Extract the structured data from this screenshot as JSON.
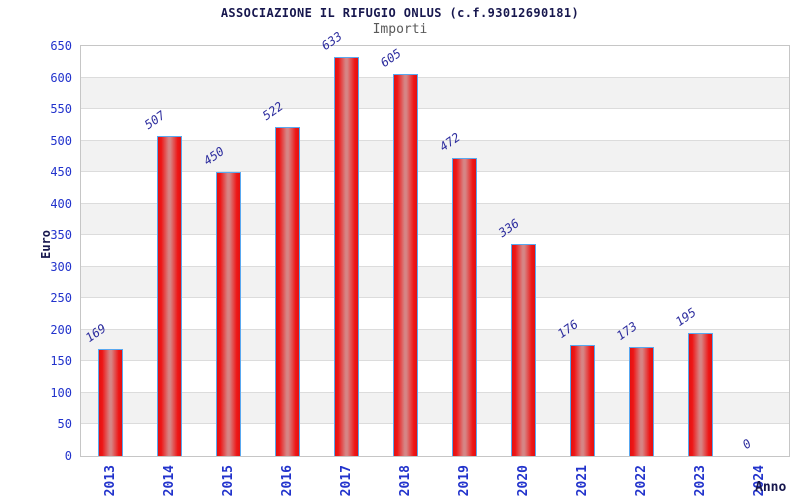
{
  "header": {
    "title": "ASSOCIAZIONE IL RIFUGIO ONLUS (c.f.93012690181)",
    "subtitle": "Importi"
  },
  "chart_data": {
    "type": "bar",
    "title": "ASSOCIAZIONE IL RIFUGIO ONLUS (c.f.93012690181)",
    "subtitle": "Importi",
    "categories": [
      "2013",
      "2014",
      "2015",
      "2016",
      "2017",
      "2018",
      "2019",
      "2020",
      "2021",
      "2022",
      "2023",
      "2024"
    ],
    "values": [
      169,
      507,
      450,
      522,
      633,
      605,
      472,
      336,
      176,
      173,
      195,
      0
    ],
    "xlabel": "Anno",
    "ylabel": "Euro",
    "ylim": [
      0,
      650
    ],
    "ytick_step": 50,
    "yticks": [
      0,
      50,
      100,
      150,
      200,
      250,
      300,
      350,
      400,
      450,
      500,
      550,
      600,
      650
    ],
    "grid": "horizontal-bands",
    "legend": "none",
    "colors": {
      "bar_edge": "#e31111",
      "bar_center": "#d68585",
      "bar_border": "#58a8f0",
      "tick_text": "#2233cc",
      "value_text": "#2d2d9e",
      "title_text": "#17174e",
      "subtitle_text": "#5a5a5a",
      "band": "#f2f2f2",
      "gridline": "#dcdcdc",
      "plot_border": "#c6c6c6"
    }
  }
}
